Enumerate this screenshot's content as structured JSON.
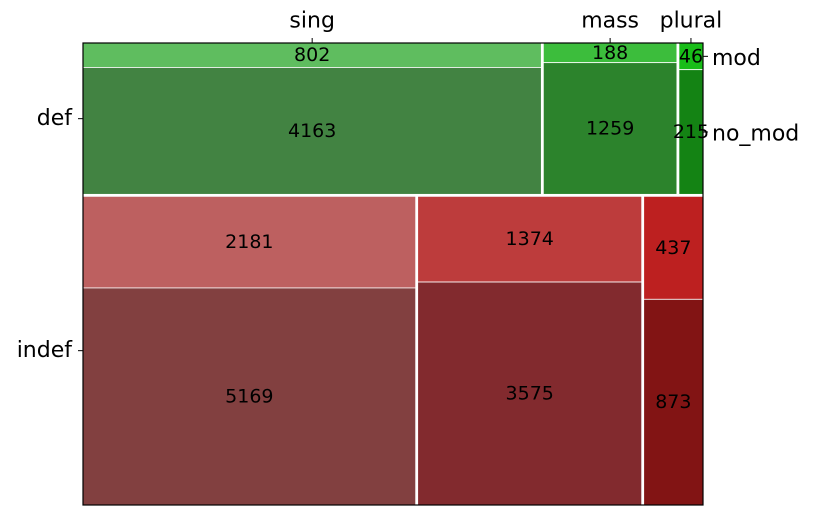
{
  "chart_data": {
    "type": "mosaic",
    "x_categories": [
      "sing",
      "mass",
      "plural"
    ],
    "y_categories": [
      "def",
      "indef"
    ],
    "sub_categories": [
      "mod",
      "no_mod"
    ],
    "right_labels": [
      "mod",
      "no_mod"
    ],
    "cells": [
      {
        "x": "sing",
        "y": "def",
        "sub": "mod",
        "value": 802,
        "color": "#5fbd5f"
      },
      {
        "x": "sing",
        "y": "def",
        "sub": "no_mod",
        "value": 4163,
        "color": "#428342"
      },
      {
        "x": "mass",
        "y": "def",
        "sub": "mod",
        "value": 188,
        "color": "#3cbd3c"
      },
      {
        "x": "mass",
        "y": "def",
        "sub": "no_mod",
        "value": 1259,
        "color": "#2c832c"
      },
      {
        "x": "plural",
        "y": "def",
        "sub": "mod",
        "value": 46,
        "color": "#18bd18"
      },
      {
        "x": "plural",
        "y": "def",
        "sub": "no_mod",
        "value": 215,
        "color": "#148314"
      },
      {
        "x": "sing",
        "y": "indef",
        "sub": "mod",
        "value": 2181,
        "color": "#bd6060"
      },
      {
        "x": "sing",
        "y": "indef",
        "sub": "no_mod",
        "value": 5169,
        "color": "#824040"
      },
      {
        "x": "mass",
        "y": "indef",
        "sub": "mod",
        "value": 1374,
        "color": "#bd3c3c"
      },
      {
        "x": "mass",
        "y": "indef",
        "sub": "no_mod",
        "value": 3575,
        "color": "#822a2e"
      },
      {
        "x": "plural",
        "y": "indef",
        "sub": "mod",
        "value": 437,
        "color": "#bd2020"
      },
      {
        "x": "plural",
        "y": "indef",
        "sub": "no_mod",
        "value": 873,
        "color": "#821414"
      }
    ]
  }
}
